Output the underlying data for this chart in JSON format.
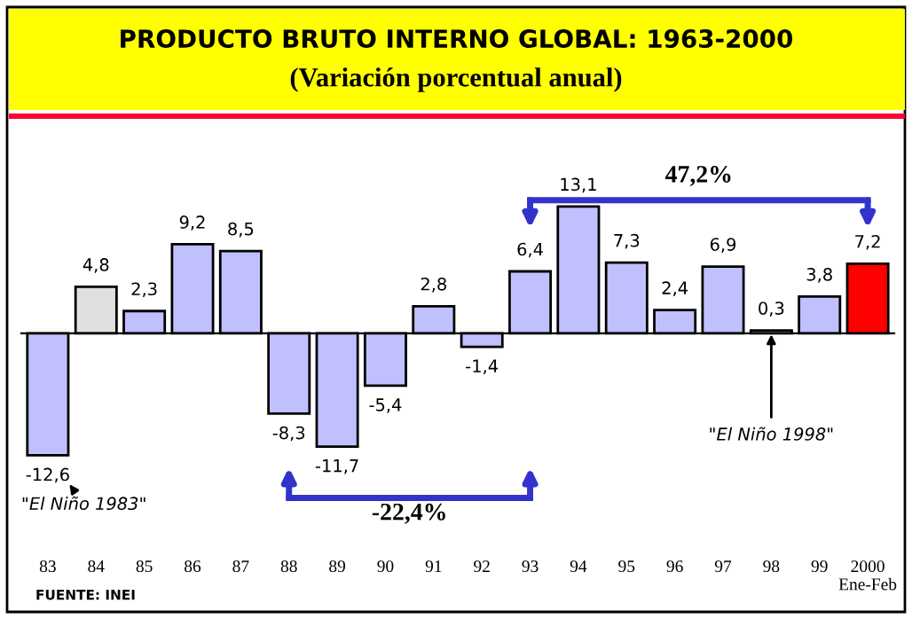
{
  "chart_data": {
    "type": "bar",
    "title": "PRODUCTO BRUTO INTERNO GLOBAL: 1963-2000",
    "subtitle": "(Variación porcentual anual)",
    "categories": [
      "83",
      "84",
      "85",
      "86",
      "87",
      "88",
      "89",
      "90",
      "91",
      "92",
      "93",
      "94",
      "95",
      "96",
      "97",
      "98",
      "99",
      "2000\nEne-Feb"
    ],
    "values": [
      -12.6,
      4.8,
      2.3,
      9.2,
      8.5,
      -8.3,
      -11.7,
      -5.4,
      2.8,
      -1.4,
      6.4,
      13.1,
      7.3,
      2.4,
      6.9,
      0.3,
      3.8,
      7.2
    ],
    "value_labels": [
      "-12,6",
      "4,8",
      "2,3",
      "9,2",
      "8,5",
      "-8,3",
      "-11,7",
      "-5,4",
      "2,8",
      "-1,4",
      "6,4",
      "13,1",
      "7,3",
      "2,4",
      "6,9",
      "0,3",
      "3,8",
      "7,2"
    ],
    "colors": [
      "#c0c0ff",
      "#e0e0e0",
      "#c0c0ff",
      "#c0c0ff",
      "#c0c0ff",
      "#c0c0ff",
      "#c0c0ff",
      "#c0c0ff",
      "#c0c0ff",
      "#c0c0ff",
      "#c0c0ff",
      "#c0c0ff",
      "#c0c0ff",
      "#c0c0ff",
      "#c0c0ff",
      "#c0c0ff",
      "#c0c0ff",
      "#ff0000"
    ],
    "annotations": [
      {
        "text": "\"El Niño 1983\"",
        "x": "83",
        "y": -12.6
      },
      {
        "text": "\"El Niño 1998\"",
        "x": "98",
        "y": 0.3
      },
      "47,2%",
      "-22,4%",
      "FUENTE: INEI"
    ]
  }
}
